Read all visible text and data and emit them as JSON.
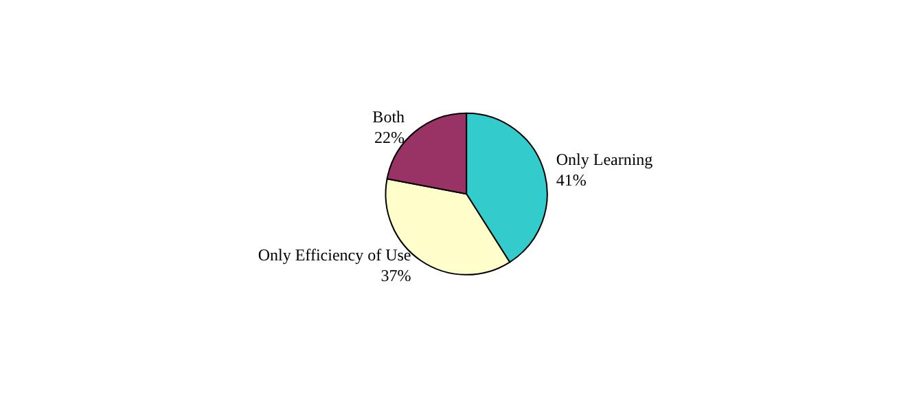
{
  "chart_data": {
    "type": "pie",
    "categories": [
      "Only Learning",
      "Only Efficiency of Use",
      "Both"
    ],
    "values": [
      41,
      37,
      22
    ],
    "value_labels": [
      "41%",
      "37%",
      "22%"
    ],
    "colors": [
      "#33cccc",
      "#ffffcc",
      "#993366"
    ]
  }
}
